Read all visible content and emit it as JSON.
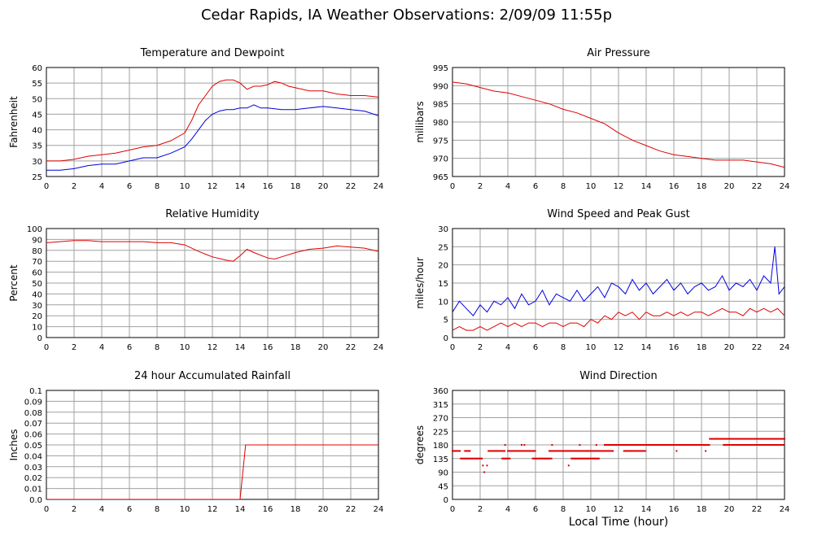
{
  "page": {
    "title": "Cedar Rapids, IA Weather Observations: 2/09/09 11:55p",
    "xaxis_title": "Local Time (hour)"
  },
  "colors": {
    "grid": "#a0a0a0",
    "red_series": "#e00000",
    "blue_series": "#0000e0"
  },
  "chart_data": [
    {
      "type": "line",
      "title": "Temperature and Dewpoint",
      "xlabel": "",
      "ylabel": "Fahrenheit",
      "xlim": [
        0,
        24
      ],
      "ylim": [
        25,
        60
      ],
      "xticks": [
        0,
        2,
        4,
        6,
        8,
        10,
        12,
        14,
        16,
        18,
        20,
        22,
        24
      ],
      "yticks": [
        "25",
        "30",
        "35",
        "40",
        "45",
        "50",
        "55",
        "60"
      ],
      "grid": true,
      "series": [
        {
          "color": "red",
          "x": [
            0,
            1,
            2,
            3,
            4,
            5,
            6,
            7,
            8,
            9,
            10,
            10.5,
            11,
            11.5,
            12,
            12.5,
            13,
            13.5,
            14,
            14.5,
            15,
            15.5,
            16,
            16.5,
            17,
            17.5,
            18,
            18.5,
            19,
            19.5,
            20,
            21,
            22,
            23,
            24
          ],
          "y": [
            30,
            30,
            30.5,
            31.5,
            32,
            32.5,
            33.5,
            34.5,
            35,
            36.5,
            39,
            43,
            48,
            51,
            54,
            55.5,
            56,
            56,
            55,
            53,
            54,
            54,
            54.5,
            55.5,
            55,
            54,
            53.5,
            53,
            52.5,
            52.5,
            52.5,
            51.5,
            51,
            51,
            50.5
          ]
        },
        {
          "color": "blue",
          "x": [
            0,
            1,
            2,
            3,
            4,
            5,
            6,
            7,
            8,
            9,
            10,
            10.5,
            11,
            11.5,
            12,
            12.5,
            13,
            13.5,
            14,
            14.5,
            15,
            15.5,
            16,
            17,
            18,
            19,
            20,
            21,
            22,
            23,
            24
          ],
          "y": [
            27,
            27,
            27.5,
            28.5,
            29,
            29,
            30,
            31,
            31,
            32.5,
            34.5,
            37,
            40,
            43,
            45,
            46,
            46.5,
            46.5,
            47,
            47,
            48,
            47,
            47,
            46.5,
            46.5,
            47,
            47.5,
            47,
            46.5,
            46,
            44.5
          ]
        }
      ]
    },
    {
      "type": "line",
      "title": "Air Pressure",
      "xlabel": "",
      "ylabel": "millibars",
      "xlim": [
        0,
        24
      ],
      "ylim": [
        965,
        995
      ],
      "xticks": [
        0,
        2,
        4,
        6,
        8,
        10,
        12,
        14,
        16,
        18,
        20,
        22,
        24
      ],
      "yticks": [
        "965",
        "970",
        "975",
        "980",
        "985",
        "990",
        "995"
      ],
      "grid": true,
      "series": [
        {
          "color": "red",
          "x": [
            0,
            1,
            2,
            3,
            4,
            5,
            6,
            7,
            8,
            9,
            10,
            11,
            12,
            13,
            14,
            15,
            16,
            17,
            18,
            19,
            20,
            21,
            22,
            23,
            24
          ],
          "y": [
            991,
            990.5,
            989.5,
            988.5,
            988,
            987,
            986,
            985,
            983.5,
            982.5,
            981,
            979.5,
            977,
            975,
            973.5,
            972,
            971,
            970.5,
            970,
            969.5,
            969.5,
            969.5,
            969,
            968.5,
            967.5
          ]
        }
      ]
    },
    {
      "type": "line",
      "title": "Relative Humidity",
      "xlabel": "",
      "ylabel": "Percent",
      "xlim": [
        0,
        24
      ],
      "ylim": [
        0,
        100
      ],
      "xticks": [
        0,
        2,
        4,
        6,
        8,
        10,
        12,
        14,
        16,
        18,
        20,
        22,
        24
      ],
      "yticks": [
        "0",
        "10",
        "20",
        "30",
        "40",
        "50",
        "60",
        "70",
        "80",
        "90",
        "100"
      ],
      "grid": true,
      "series": [
        {
          "color": "red",
          "x": [
            0,
            1,
            2,
            3,
            4,
            5,
            6,
            7,
            8,
            9,
            10,
            11,
            12,
            13,
            13.5,
            14,
            14.5,
            15,
            16,
            16.5,
            17,
            18,
            19,
            20,
            21,
            22,
            23,
            24
          ],
          "y": [
            87,
            88,
            89,
            89,
            88,
            88,
            88,
            88,
            87,
            87,
            85,
            79,
            74,
            71,
            70,
            75,
            81,
            78,
            73,
            72,
            74,
            78,
            81,
            82,
            84,
            83,
            82,
            79
          ]
        }
      ]
    },
    {
      "type": "line",
      "title": "Wind Speed and Peak Gust",
      "xlabel": "",
      "ylabel": "miles/hour",
      "xlim": [
        0,
        24
      ],
      "ylim": [
        0,
        30
      ],
      "xticks": [
        0,
        2,
        4,
        6,
        8,
        10,
        12,
        14,
        16,
        18,
        20,
        22,
        24
      ],
      "yticks": [
        "0",
        "5",
        "10",
        "15",
        "20",
        "25",
        "30"
      ],
      "grid": true,
      "series": [
        {
          "color": "blue",
          "x": [
            0,
            0.5,
            1,
            1.5,
            2,
            2.5,
            3,
            3.5,
            4,
            4.5,
            5,
            5.5,
            6,
            6.5,
            7,
            7.5,
            8,
            8.5,
            9,
            9.5,
            10,
            10.5,
            11,
            11.5,
            12,
            12.5,
            13,
            13.5,
            14,
            14.5,
            15,
            15.5,
            16,
            16.5,
            17,
            17.5,
            18,
            18.5,
            19,
            19.5,
            20,
            20.5,
            21,
            21.5,
            22,
            22.5,
            23,
            23.3,
            23.6,
            24
          ],
          "y": [
            7,
            10,
            8,
            6,
            9,
            7,
            10,
            9,
            11,
            8,
            12,
            9,
            10,
            13,
            9,
            12,
            11,
            10,
            13,
            10,
            12,
            14,
            11,
            15,
            14,
            12,
            16,
            13,
            15,
            12,
            14,
            16,
            13,
            15,
            12,
            14,
            15,
            13,
            14,
            17,
            13,
            15,
            14,
            16,
            13,
            17,
            15,
            25,
            12,
            14
          ]
        },
        {
          "color": "red",
          "x": [
            0,
            0.5,
            1,
            1.5,
            2,
            2.5,
            3,
            3.5,
            4,
            4.5,
            5,
            5.5,
            6,
            6.5,
            7,
            7.5,
            8,
            8.5,
            9,
            9.5,
            10,
            10.5,
            11,
            11.5,
            12,
            12.5,
            13,
            13.5,
            14,
            14.5,
            15,
            15.5,
            16,
            16.5,
            17,
            17.5,
            18,
            18.5,
            19,
            19.5,
            20,
            20.5,
            21,
            21.5,
            22,
            22.5,
            23,
            23.5,
            24
          ],
          "y": [
            2,
            3,
            2,
            2,
            3,
            2,
            3,
            4,
            3,
            4,
            3,
            4,
            4,
            3,
            4,
            4,
            3,
            4,
            4,
            3,
            5,
            4,
            6,
            5,
            7,
            6,
            7,
            5,
            7,
            6,
            6,
            7,
            6,
            7,
            6,
            7,
            7,
            6,
            7,
            8,
            7,
            7,
            6,
            8,
            7,
            8,
            7,
            8,
            6
          ]
        }
      ]
    },
    {
      "type": "line",
      "title": "24 hour Accumulated Rainfall",
      "xlabel": "",
      "ylabel": "Inches",
      "xlim": [
        0,
        24
      ],
      "ylim": [
        0,
        0.1
      ],
      "xticks": [
        0,
        2,
        4,
        6,
        8,
        10,
        12,
        14,
        16,
        18,
        20,
        22,
        24
      ],
      "yticks": [
        "0.0",
        "0.01",
        "0.02",
        "0.03",
        "0.04",
        "0.05",
        "0.06",
        "0.07",
        "0.08",
        "0.09",
        "0.1"
      ],
      "grid": true,
      "series": [
        {
          "color": "red",
          "x": [
            0,
            14,
            14.4,
            24
          ],
          "y": [
            0,
            0,
            0.05,
            0.05
          ]
        }
      ]
    },
    {
      "type": "scatter",
      "title": "Wind Direction",
      "xlabel": "Local Time (hour)",
      "ylabel": "degrees",
      "xlim": [
        0,
        24
      ],
      "ylim": [
        0,
        360
      ],
      "xticks": [
        0,
        2,
        4,
        6,
        8,
        10,
        12,
        14,
        16,
        18,
        20,
        22,
        24
      ],
      "yticks": [
        "0",
        "45",
        "90",
        "135",
        "180",
        "225",
        "270",
        "315",
        "360"
      ],
      "grid": true,
      "segments": [
        {
          "from": 0,
          "to": 0.6,
          "deg": 160
        },
        {
          "from": 0.6,
          "to": 2.2,
          "deg": 135
        },
        {
          "from": 0.9,
          "to": 1.3,
          "deg": 160
        },
        {
          "from": 2.6,
          "to": 3.8,
          "deg": 160
        },
        {
          "from": 3.6,
          "to": 4.2,
          "deg": 135
        },
        {
          "from": 4.0,
          "to": 6.0,
          "deg": 160
        },
        {
          "from": 5.8,
          "to": 7.2,
          "deg": 135
        },
        {
          "from": 7.0,
          "to": 9.8,
          "deg": 160
        },
        {
          "from": 8.6,
          "to": 10.6,
          "deg": 135
        },
        {
          "from": 9.8,
          "to": 11.6,
          "deg": 160
        },
        {
          "from": 11.0,
          "to": 18.6,
          "deg": 180
        },
        {
          "from": 12.4,
          "to": 14.0,
          "deg": 160
        },
        {
          "from": 18.6,
          "to": 24,
          "deg": 200
        },
        {
          "from": 19.6,
          "to": 24,
          "deg": 180
        }
      ],
      "points": [
        {
          "x": 2.2,
          "y": 112
        },
        {
          "x": 2.3,
          "y": 90
        },
        {
          "x": 2.5,
          "y": 112
        },
        {
          "x": 3.8,
          "y": 180
        },
        {
          "x": 5.0,
          "y": 180
        },
        {
          "x": 5.2,
          "y": 180
        },
        {
          "x": 7.2,
          "y": 180
        },
        {
          "x": 8.4,
          "y": 112
        },
        {
          "x": 9.2,
          "y": 180
        },
        {
          "x": 10.4,
          "y": 180
        },
        {
          "x": 16.2,
          "y": 160
        },
        {
          "x": 18.3,
          "y": 160
        }
      ]
    }
  ]
}
